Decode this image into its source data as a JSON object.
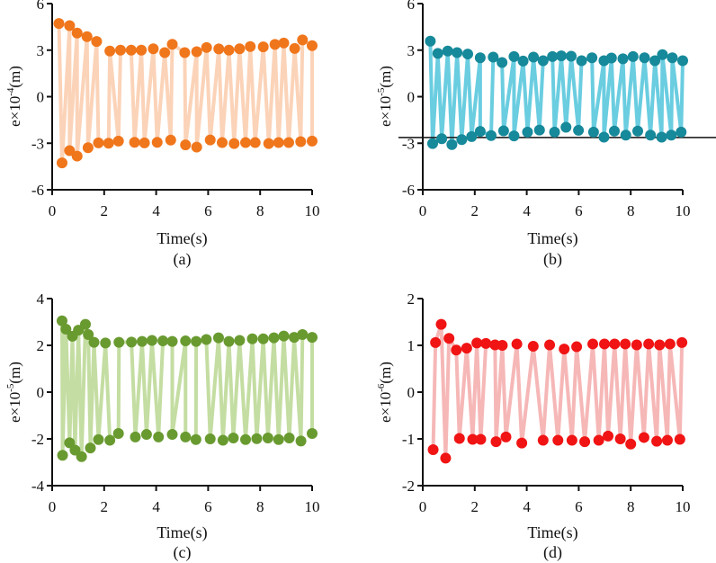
{
  "chart_data": [
    {
      "type": "line",
      "panel_label": "(a)",
      "xlabel": "Time(s)",
      "ylabel": {
        "prefix": "e×10",
        "exp": "-4",
        "suffix": "(m)"
      },
      "xlim": [
        0,
        10
      ],
      "ylim": [
        -6,
        6
      ],
      "xticks": [
        "0",
        "2",
        "4",
        "6",
        "8",
        "10"
      ],
      "xtick_values": [
        0,
        2,
        4,
        6,
        8,
        10
      ],
      "yticks": [
        "-6",
        "-3",
        "0",
        "3",
        "6"
      ],
      "ytick_values": [
        -6,
        -3,
        0,
        3,
        6
      ],
      "dot_color": "#F0761C",
      "line_color": "#FBD3B8",
      "upper": [
        [
          0.26,
          4.72
        ],
        [
          0.67,
          4.58
        ],
        [
          0.96,
          4.1
        ],
        [
          1.34,
          3.87
        ],
        [
          1.71,
          3.56
        ],
        [
          2.22,
          2.94
        ],
        [
          2.63,
          3.0
        ],
        [
          3.04,
          3.0
        ],
        [
          3.43,
          3.0
        ],
        [
          3.89,
          3.09
        ],
        [
          4.33,
          2.84
        ],
        [
          4.62,
          3.38
        ],
        [
          5.1,
          2.84
        ],
        [
          5.56,
          2.9
        ],
        [
          5.94,
          3.17
        ],
        [
          6.41,
          3.08
        ],
        [
          6.8,
          3.0
        ],
        [
          7.21,
          3.09
        ],
        [
          7.62,
          3.23
        ],
        [
          8.12,
          3.21
        ],
        [
          8.57,
          3.37
        ],
        [
          8.91,
          3.46
        ],
        [
          9.33,
          3.11
        ],
        [
          9.63,
          3.66
        ],
        [
          10.0,
          3.29
        ]
      ],
      "lower": [
        [
          0.38,
          -4.27
        ],
        [
          0.67,
          -3.48
        ],
        [
          0.96,
          -3.83
        ],
        [
          1.38,
          -3.29
        ],
        [
          1.78,
          -2.98
        ],
        [
          2.17,
          -3.0
        ],
        [
          2.55,
          -2.86
        ],
        [
          3.17,
          -2.94
        ],
        [
          3.55,
          -2.98
        ],
        [
          4.04,
          -2.94
        ],
        [
          4.56,
          -2.8
        ],
        [
          5.13,
          -3.11
        ],
        [
          5.56,
          -3.25
        ],
        [
          6.08,
          -2.79
        ],
        [
          6.54,
          -2.96
        ],
        [
          7.0,
          -3.02
        ],
        [
          7.44,
          -2.96
        ],
        [
          7.81,
          -2.96
        ],
        [
          8.33,
          -3.02
        ],
        [
          8.71,
          -2.96
        ],
        [
          9.1,
          -2.96
        ],
        [
          9.56,
          -2.9
        ],
        [
          10.0,
          -2.86
        ]
      ]
    },
    {
      "type": "line",
      "panel_label": "(b)",
      "xlabel": "Time(s)",
      "ylabel": {
        "prefix": "e×10",
        "exp": "-5",
        "suffix": "(m)"
      },
      "xlim": [
        0,
        10
      ],
      "ylim": [
        -6,
        6
      ],
      "xticks": [
        "0",
        "2",
        "4",
        "6",
        "8",
        "10"
      ],
      "xtick_values": [
        0,
        2,
        4,
        6,
        8,
        10
      ],
      "yticks": [
        "-6",
        "-3",
        "0",
        "3",
        "6"
      ],
      "ytick_values": [
        -6,
        -3,
        0,
        3,
        6
      ],
      "dot_color": "#16899A",
      "line_color": "#6ACDE0",
      "reference_line": -2.63,
      "upper": [
        [
          0.29,
          3.58
        ],
        [
          0.58,
          2.79
        ],
        [
          0.96,
          2.94
        ],
        [
          1.32,
          2.84
        ],
        [
          1.73,
          2.75
        ],
        [
          2.21,
          2.51
        ],
        [
          2.71,
          2.55
        ],
        [
          3.05,
          2.2
        ],
        [
          3.51,
          2.59
        ],
        [
          3.86,
          2.3
        ],
        [
          4.26,
          2.55
        ],
        [
          4.63,
          2.32
        ],
        [
          4.99,
          2.59
        ],
        [
          5.33,
          2.63
        ],
        [
          5.71,
          2.61
        ],
        [
          6.11,
          2.32
        ],
        [
          6.51,
          2.51
        ],
        [
          6.97,
          2.32
        ],
        [
          7.26,
          2.49
        ],
        [
          7.7,
          2.44
        ],
        [
          8.09,
          2.59
        ],
        [
          8.53,
          2.51
        ],
        [
          8.93,
          2.32
        ],
        [
          9.22,
          2.71
        ],
        [
          9.6,
          2.51
        ],
        [
          10.0,
          2.32
        ]
      ],
      "lower": [
        [
          0.38,
          -3.02
        ],
        [
          0.73,
          -2.71
        ],
        [
          1.12,
          -3.09
        ],
        [
          1.5,
          -2.77
        ],
        [
          1.88,
          -2.57
        ],
        [
          2.21,
          -2.24
        ],
        [
          2.63,
          -2.51
        ],
        [
          3.11,
          -2.2
        ],
        [
          3.51,
          -2.53
        ],
        [
          4.03,
          -2.28
        ],
        [
          4.49,
          -2.15
        ],
        [
          5.07,
          -2.28
        ],
        [
          5.51,
          -1.97
        ],
        [
          5.99,
          -2.17
        ],
        [
          6.57,
          -2.28
        ],
        [
          6.97,
          -2.61
        ],
        [
          7.37,
          -2.22
        ],
        [
          7.81,
          -2.48
        ],
        [
          8.27,
          -2.22
        ],
        [
          8.76,
          -2.48
        ],
        [
          9.19,
          -2.61
        ],
        [
          9.56,
          -2.48
        ],
        [
          9.94,
          -2.28
        ]
      ]
    },
    {
      "type": "line",
      "panel_label": "(c)",
      "xlabel": "Time(s)",
      "ylabel": {
        "prefix": "e×10",
        "exp": "-5",
        "suffix": "(m)"
      },
      "xlim": [
        0,
        10
      ],
      "ylim": [
        -4,
        4
      ],
      "xticks": [
        "0",
        "2",
        "4",
        "6",
        "8",
        "10"
      ],
      "xtick_values": [
        0,
        2,
        4,
        6,
        8,
        10
      ],
      "yticks": [
        "-4",
        "-2",
        "0",
        "2",
        "4"
      ],
      "ytick_values": [
        -4,
        -2,
        0,
        2,
        4
      ],
      "dot_color": "#699A30",
      "line_color": "#C4DDA2",
      "upper": [
        [
          0.38,
          3.05
        ],
        [
          0.53,
          2.69
        ],
        [
          0.78,
          2.39
        ],
        [
          1.01,
          2.65
        ],
        [
          1.28,
          2.9
        ],
        [
          1.39,
          2.46
        ],
        [
          1.61,
          2.13
        ],
        [
          2.05,
          2.1
        ],
        [
          2.57,
          2.13
        ],
        [
          3.05,
          2.14
        ],
        [
          3.46,
          2.17
        ],
        [
          3.84,
          2.21
        ],
        [
          4.26,
          2.19
        ],
        [
          4.62,
          2.17
        ],
        [
          5.13,
          2.19
        ],
        [
          5.54,
          2.17
        ],
        [
          5.93,
          2.25
        ],
        [
          6.4,
          2.32
        ],
        [
          6.8,
          2.17
        ],
        [
          7.21,
          2.21
        ],
        [
          7.7,
          2.28
        ],
        [
          8.12,
          2.28
        ],
        [
          8.53,
          2.32
        ],
        [
          8.91,
          2.4
        ],
        [
          9.31,
          2.34
        ],
        [
          9.63,
          2.46
        ],
        [
          10.0,
          2.34
        ]
      ],
      "lower": [
        [
          0.4,
          -2.7
        ],
        [
          0.67,
          -2.17
        ],
        [
          0.88,
          -2.48
        ],
        [
          1.13,
          -2.76
        ],
        [
          1.47,
          -2.39
        ],
        [
          1.78,
          -2.03
        ],
        [
          2.22,
          -2.06
        ],
        [
          2.55,
          -1.77
        ],
        [
          3.2,
          -1.92
        ],
        [
          3.63,
          -1.81
        ],
        [
          4.09,
          -1.92
        ],
        [
          4.62,
          -1.81
        ],
        [
          5.13,
          -1.92
        ],
        [
          5.53,
          -2.03
        ],
        [
          6.08,
          -2.0
        ],
        [
          6.57,
          -2.06
        ],
        [
          6.97,
          -1.96
        ],
        [
          7.44,
          -2.03
        ],
        [
          7.87,
          -1.99
        ],
        [
          8.3,
          -1.96
        ],
        [
          8.71,
          -2.03
        ],
        [
          9.12,
          -1.96
        ],
        [
          9.57,
          -2.09
        ],
        [
          10.0,
          -1.77
        ]
      ]
    },
    {
      "type": "line",
      "panel_label": "(d)",
      "xlabel": "Time(s)",
      "ylabel": {
        "prefix": "e×10",
        "exp": "-6",
        "suffix": "(m)"
      },
      "xlim": [
        0,
        10
      ],
      "ylim": [
        -2,
        2
      ],
      "xticks": [
        "0",
        "2",
        "4",
        "6",
        "8",
        "10"
      ],
      "xtick_values": [
        0,
        2,
        4,
        6,
        8,
        10
      ],
      "yticks": [
        "-2",
        "-1",
        "0",
        "1",
        "2"
      ],
      "ytick_values": [
        -2,
        -1,
        0,
        1,
        2
      ],
      "dot_color": "#F01414",
      "line_color": "#F6B7B7",
      "upper": [
        [
          0.49,
          1.06
        ],
        [
          0.71,
          1.45
        ],
        [
          1.01,
          1.15
        ],
        [
          1.29,
          0.9
        ],
        [
          1.69,
          0.94
        ],
        [
          2.08,
          1.05
        ],
        [
          2.43,
          1.04
        ],
        [
          2.78,
          1.01
        ],
        [
          3.06,
          1.0
        ],
        [
          3.62,
          1.03
        ],
        [
          4.25,
          0.98
        ],
        [
          4.88,
          1.01
        ],
        [
          5.44,
          0.92
        ],
        [
          5.92,
          0.97
        ],
        [
          6.54,
          1.03
        ],
        [
          6.99,
          1.03
        ],
        [
          7.38,
          1.03
        ],
        [
          7.79,
          1.03
        ],
        [
          8.23,
          1.01
        ],
        [
          8.69,
          1.03
        ],
        [
          9.11,
          1.01
        ],
        [
          9.51,
          1.03
        ],
        [
          9.97,
          1.06
        ]
      ],
      "lower": [
        [
          0.4,
          -1.23
        ],
        [
          0.88,
          -1.41
        ],
        [
          1.41,
          -0.99
        ],
        [
          1.92,
          -1.01
        ],
        [
          2.23,
          -1.01
        ],
        [
          2.82,
          -1.06
        ],
        [
          3.2,
          -0.96
        ],
        [
          3.81,
          -1.09
        ],
        [
          4.63,
          -1.03
        ],
        [
          5.2,
          -1.03
        ],
        [
          5.74,
          -1.03
        ],
        [
          6.23,
          -1.06
        ],
        [
          6.77,
          -1.03
        ],
        [
          7.13,
          -0.94
        ],
        [
          7.6,
          -1.0
        ],
        [
          8.0,
          -1.11
        ],
        [
          8.51,
          -0.97
        ],
        [
          9.0,
          -1.05
        ],
        [
          9.41,
          -1.03
        ],
        [
          9.89,
          -1.01
        ]
      ]
    }
  ]
}
